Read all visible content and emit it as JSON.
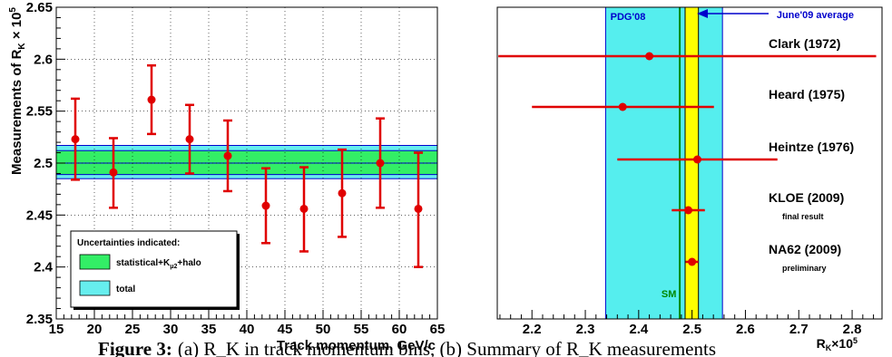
{
  "chart_data": [
    {
      "type": "scatter",
      "xlabel": "Track momentum, GeV/c",
      "ylabel": "Measurements of R_K × 10^5",
      "xlim": [
        15,
        65
      ],
      "ylim": [
        2.35,
        2.65
      ],
      "x_ticks": [
        "15",
        "20",
        "25",
        "30",
        "35",
        "40",
        "45",
        "50",
        "55",
        "60",
        "65"
      ],
      "y_ticks": [
        "2.35",
        "2.4",
        "2.45",
        "2.5",
        "2.55",
        "2.6",
        "2.65"
      ],
      "bands": [
        {
          "name": "statistical+K_μ2+halo",
          "low": 2.489,
          "high": 2.512,
          "color": "#33ee66"
        },
        {
          "name": "total",
          "low": 2.485,
          "high": 2.517,
          "color": "#66eeee"
        }
      ],
      "band_center": 2.5,
      "legend_title": "Uncertainties indicated:",
      "legend_items": [
        {
          "label": "statistical+K",
          "sub": "μ2",
          "suffix": "+halo",
          "color": "#33ee66"
        },
        {
          "label": "total",
          "sub": "",
          "suffix": "",
          "color": "#66eeee"
        }
      ],
      "points": [
        {
          "x": 17.5,
          "y": 2.523,
          "lo": 2.484,
          "hi": 2.562
        },
        {
          "x": 22.5,
          "y": 2.491,
          "lo": 2.457,
          "hi": 2.524
        },
        {
          "x": 27.5,
          "y": 2.561,
          "lo": 2.528,
          "hi": 2.594
        },
        {
          "x": 32.5,
          "y": 2.523,
          "lo": 2.49,
          "hi": 2.556
        },
        {
          "x": 37.5,
          "y": 2.507,
          "lo": 2.473,
          "hi": 2.541
        },
        {
          "x": 42.5,
          "y": 2.459,
          "lo": 2.423,
          "hi": 2.495
        },
        {
          "x": 47.5,
          "y": 2.456,
          "lo": 2.415,
          "hi": 2.496
        },
        {
          "x": 52.5,
          "y": 2.471,
          "lo": 2.429,
          "hi": 2.513
        },
        {
          "x": 57.5,
          "y": 2.5,
          "lo": 2.457,
          "hi": 2.543
        },
        {
          "x": 62.5,
          "y": 2.456,
          "lo": 2.4,
          "hi": 2.51
        }
      ]
    },
    {
      "type": "scatter",
      "xlabel": "R_K×10^5",
      "xlim": [
        2.135,
        2.856
      ],
      "x_ticks": [
        "2.2",
        "2.3",
        "2.4",
        "2.5",
        "2.6",
        "2.7",
        "2.8"
      ],
      "x_tick_values": [
        2.2,
        2.3,
        2.4,
        2.5,
        2.6,
        2.7,
        2.8
      ],
      "pdg_band": {
        "label": "PDG'08",
        "low": 2.338,
        "high": 2.557,
        "color": "#55eeee"
      },
      "avg_band": {
        "label": "June'09 average",
        "low": 2.487,
        "high": 2.512,
        "color": "#ffff00"
      },
      "sm_line": {
        "label": "SM",
        "value": 2.477,
        "color": "#008800"
      },
      "measurements": [
        {
          "label": "Clark (1972)",
          "sub": "",
          "value": 2.42,
          "lo": 2.137,
          "hi": 2.845
        },
        {
          "label": "Heard (1975)",
          "sub": "",
          "value": 2.37,
          "lo": 2.2,
          "hi": 2.541
        },
        {
          "label": "Heintze (1976)",
          "sub": "",
          "value": 2.51,
          "lo": 2.36,
          "hi": 2.66
        },
        {
          "label": "KLOE (2009)",
          "sub": "final result",
          "value": 2.493,
          "lo": 2.462,
          "hi": 2.524
        },
        {
          "label": "NA62 (2009)",
          "sub": "preliminary",
          "value": 2.5,
          "lo": 2.488,
          "hi": 2.512
        }
      ]
    }
  ],
  "caption": {
    "figure_label": "Figure 3:",
    "text": "(a) R_K in track momentum bins, (b) Summary of R_K measurements"
  }
}
